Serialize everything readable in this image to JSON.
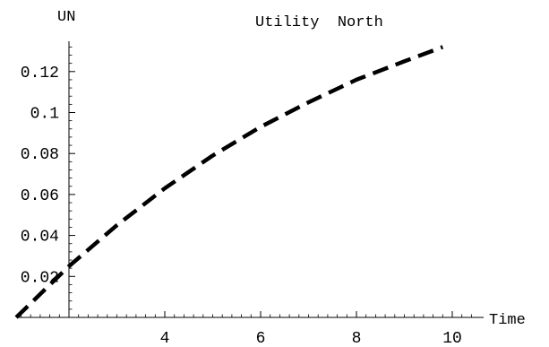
{
  "chart_data": {
    "type": "line",
    "title": "Utility  North",
    "xlabel": "Time",
    "ylabel": "UN",
    "xlim": [
      0.9,
      10.5
    ],
    "ylim": [
      0.01,
      0.135
    ],
    "x_ticks": [
      4,
      6,
      8,
      10
    ],
    "x_tick_labels": [
      "4",
      "6",
      "8",
      "10"
    ],
    "y_ticks": [
      0.02,
      0.04,
      0.06,
      0.08,
      0.1,
      0.12
    ],
    "y_tick_labels": [
      "0.02",
      "0.04",
      "0.06",
      "0.08",
      "0.1",
      "0.12"
    ],
    "grid": false,
    "series": [
      {
        "line_style": "dashed",
        "color": "#000000",
        "x": [
          0.9,
          2.0,
          3.0,
          4.0,
          5.0,
          6.0,
          7.0,
          8.0,
          9.0,
          9.8
        ],
        "y": [
          0.0,
          0.025,
          0.045,
          0.063,
          0.079,
          0.093,
          0.105,
          0.116,
          0.125,
          0.132
        ]
      }
    ]
  }
}
